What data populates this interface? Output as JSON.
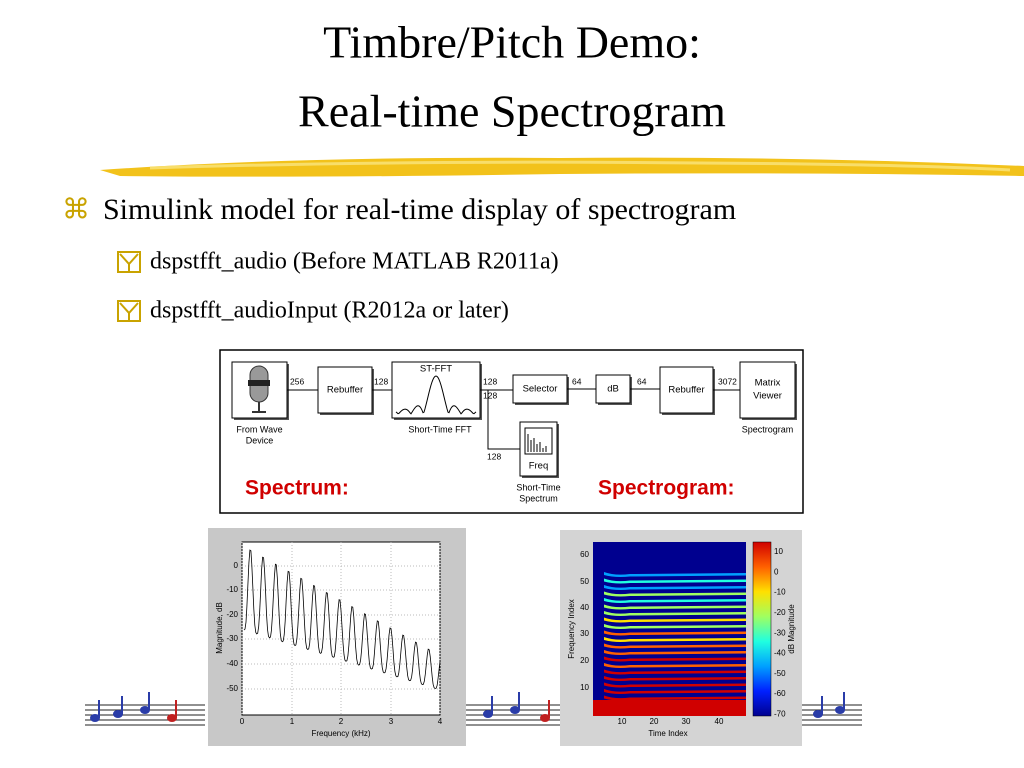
{
  "title": [
    "Timbre/Pitch Demo:",
    "Real-time Spectrogram"
  ],
  "bullets": [
    {
      "text": "Simulink model for real-time display of spectrogram",
      "sub": [
        "dspstfft_audio (Before MATLAB R2011a)",
        "dspstfft_audioInput (R2012a or later)"
      ]
    }
  ],
  "model": {
    "blocks": [
      {
        "inner": [],
        "caption": [
          "From Wave",
          "Device"
        ]
      },
      {
        "inner": [
          "Rebuffer"
        ],
        "caption": []
      },
      {
        "inner": [
          "ST-FFT"
        ],
        "caption": [
          "Short-Time FFT"
        ]
      },
      {
        "inner": [
          "Selector"
        ],
        "caption": []
      },
      {
        "inner": [
          "dB"
        ],
        "caption": []
      },
      {
        "inner": [
          "Rebuffer"
        ],
        "caption": []
      },
      {
        "inner": [
          "Matrix",
          "Viewer"
        ],
        "caption": [
          "Spectrogram"
        ]
      },
      {
        "inner": [
          "Freq"
        ],
        "caption": [
          "Short-Time",
          "Spectrum"
        ]
      }
    ],
    "signals": [
      "256",
      "128",
      "128",
      "128",
      "64",
      "64",
      "3072",
      "128"
    ],
    "captions": [
      "Spectrum:",
      "Spectrogram:"
    ]
  },
  "spectrum_plot": {
    "yticks": [
      "0",
      "-10",
      "-20",
      "-30",
      "-40",
      "-50"
    ],
    "xticks": [
      "0",
      "1",
      "2",
      "3",
      "4"
    ],
    "xlabel": "Frequency (kHz)",
    "ylabel": "Magnitude, dB"
  },
  "spectrogram_plot": {
    "yticks": [
      "60",
      "50",
      "40",
      "30",
      "20",
      "10"
    ],
    "xticks": [
      "10",
      "20",
      "30",
      "40"
    ],
    "xlabel": "Time Index",
    "ylabel": "Frequency Index",
    "colorbar_ticks": [
      "10",
      "0",
      "-10",
      "-20",
      "-30",
      "-40",
      "-50",
      "-60",
      "-70"
    ],
    "colorbar_label": "dB Magnitude"
  }
}
